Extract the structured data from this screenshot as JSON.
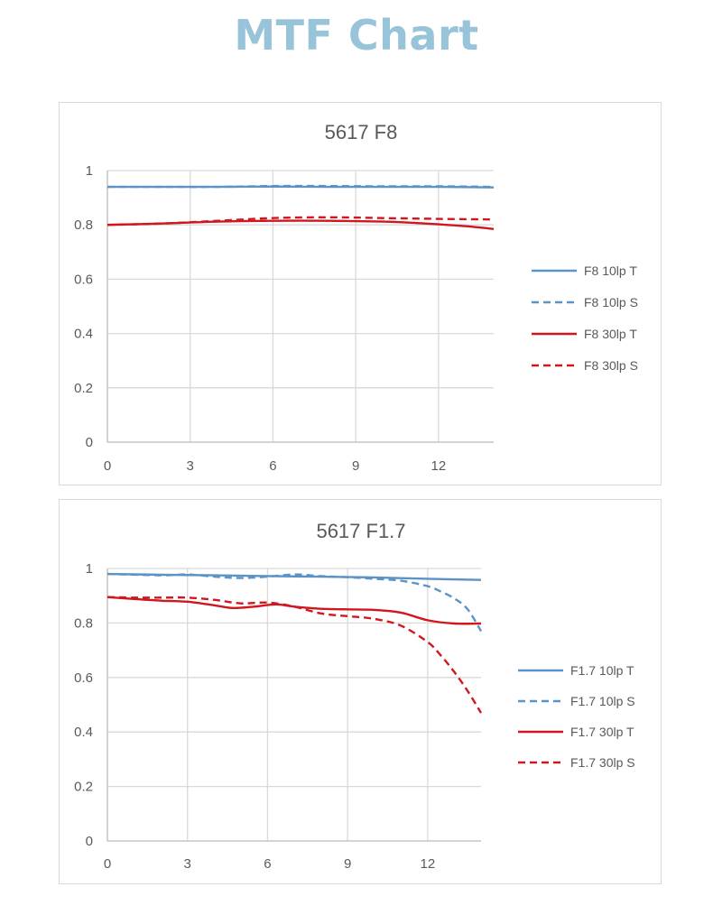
{
  "page": {
    "title": "MTF Chart"
  },
  "chart_data": [
    {
      "type": "line",
      "title": "5617   F8",
      "xlim": [
        0,
        14
      ],
      "ylim": [
        0,
        1
      ],
      "x_ticks": [
        "0",
        "3",
        "6",
        "9",
        "12"
      ],
      "y_ticks": [
        "0",
        "0.2",
        "0.4",
        "0.6",
        "0.8",
        "1"
      ],
      "grid": true,
      "legend_position": "right",
      "series": [
        {
          "name": "F8 10lp T",
          "color": "#5b93c7",
          "style": "solid",
          "x": [
            0,
            2,
            4,
            6,
            8,
            10,
            12,
            14
          ],
          "y": [
            0.94,
            0.94,
            0.94,
            0.941,
            0.94,
            0.94,
            0.94,
            0.938
          ]
        },
        {
          "name": "F8 10lp S",
          "color": "#5b93c7",
          "style": "dashed",
          "x": [
            0,
            2,
            4,
            6,
            8,
            10,
            12,
            14
          ],
          "y": [
            0.94,
            0.94,
            0.94,
            0.943,
            0.943,
            0.942,
            0.942,
            0.94
          ]
        },
        {
          "name": "F8 30lp T",
          "color": "#d0161e",
          "style": "solid",
          "x": [
            0,
            2,
            4,
            6,
            8,
            10,
            11,
            12,
            13,
            14
          ],
          "y": [
            0.8,
            0.805,
            0.812,
            0.815,
            0.815,
            0.812,
            0.808,
            0.802,
            0.795,
            0.785
          ]
        },
        {
          "name": "F8 30lp S",
          "color": "#d0161e",
          "style": "dashed",
          "x": [
            0,
            2,
            4,
            6,
            8,
            10,
            12,
            14
          ],
          "y": [
            0.8,
            0.805,
            0.815,
            0.825,
            0.828,
            0.825,
            0.822,
            0.82
          ]
        }
      ]
    },
    {
      "type": "line",
      "title": "5617   F1.7",
      "xlim": [
        0,
        14
      ],
      "ylim": [
        0,
        1
      ],
      "x_ticks": [
        "0",
        "3",
        "6",
        "9",
        "12"
      ],
      "y_ticks": [
        "0",
        "0.2",
        "0.4",
        "0.6",
        "0.8",
        "1"
      ],
      "grid": true,
      "legend_position": "right",
      "series": [
        {
          "name": "F1.7 10lp T",
          "color": "#5b93c7",
          "style": "solid",
          "x": [
            0,
            2,
            4,
            6,
            8,
            10,
            12,
            14
          ],
          "y": [
            0.98,
            0.977,
            0.975,
            0.972,
            0.97,
            0.967,
            0.962,
            0.958
          ]
        },
        {
          "name": "F1.7 10lp S",
          "color": "#5b93c7",
          "style": "dashed",
          "x": [
            0,
            2,
            3,
            4,
            5,
            6,
            7,
            8,
            9,
            10,
            11,
            12,
            12.5,
            13,
            13.5,
            14
          ],
          "y": [
            0.98,
            0.975,
            0.978,
            0.97,
            0.965,
            0.97,
            0.978,
            0.972,
            0.968,
            0.962,
            0.955,
            0.935,
            0.915,
            0.89,
            0.85,
            0.77
          ]
        },
        {
          "name": "F1.7 30lp T",
          "color": "#d0161e",
          "style": "solid",
          "x": [
            0,
            1,
            2,
            3,
            4,
            4.7,
            5.5,
            6.3,
            7,
            8,
            9,
            10,
            11,
            12,
            13,
            14
          ],
          "y": [
            0.895,
            0.888,
            0.882,
            0.878,
            0.865,
            0.855,
            0.86,
            0.868,
            0.86,
            0.852,
            0.85,
            0.848,
            0.838,
            0.81,
            0.798,
            0.798
          ]
        },
        {
          "name": "F1.7 30lp S",
          "color": "#d0161e",
          "style": "dashed",
          "x": [
            0,
            1,
            2,
            3,
            4,
            5,
            6,
            7,
            8,
            9,
            10,
            11,
            12,
            12.5,
            13,
            13.5,
            14
          ],
          "y": [
            0.895,
            0.893,
            0.893,
            0.893,
            0.885,
            0.872,
            0.875,
            0.86,
            0.835,
            0.825,
            0.815,
            0.79,
            0.73,
            0.68,
            0.62,
            0.55,
            0.47
          ]
        }
      ]
    }
  ]
}
